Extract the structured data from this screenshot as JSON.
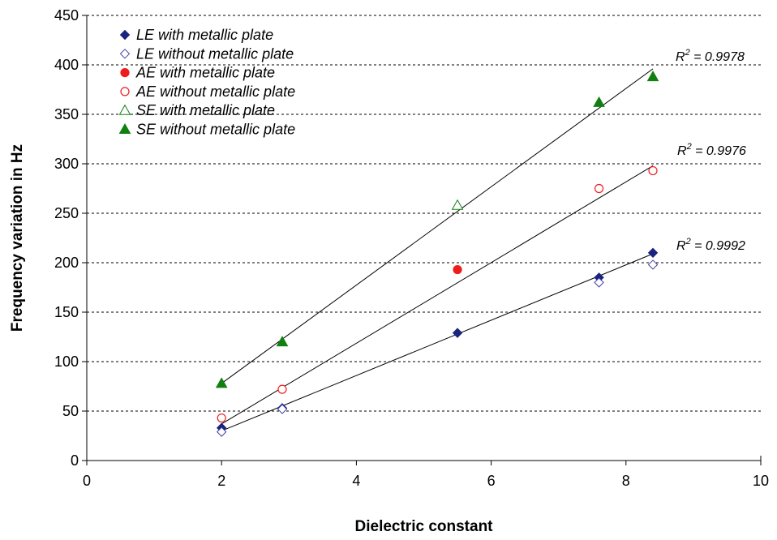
{
  "chart_data": {
    "type": "scatter",
    "title": "",
    "xlabel": "Dielectric constant",
    "ylabel": "Frequency variation in Hz",
    "xlim": [
      0,
      10
    ],
    "ylim": [
      0,
      450
    ],
    "xticks": [
      0,
      2,
      4,
      6,
      8,
      10
    ],
    "yticks": [
      0,
      50,
      100,
      150,
      200,
      250,
      300,
      350,
      400,
      450
    ],
    "grid": "horizontal dashed",
    "legend_position": "top-left",
    "series": [
      {
        "name": "LE with metallic plate",
        "marker": "diamond",
        "filled": true,
        "color": "#1a237e",
        "x": [
          2,
          2.9,
          5.5,
          7.6,
          8.4
        ],
        "y": [
          33,
          53,
          129,
          185,
          210
        ]
      },
      {
        "name": "LE without metallic plate",
        "marker": "diamond",
        "filled": false,
        "color": "#3f3fa5",
        "x": [
          2,
          2.9,
          7.6,
          8.4
        ],
        "y": [
          29,
          52,
          180,
          198
        ]
      },
      {
        "name": "AE with metallic plate",
        "marker": "circle",
        "filled": true,
        "color": "#ee1c1c",
        "x": [
          5.5
        ],
        "y": [
          193
        ]
      },
      {
        "name": "AE without metallic plate",
        "marker": "circle",
        "filled": false,
        "color": "#ee1c1c",
        "x": [
          2,
          2.9,
          7.6,
          8.4
        ],
        "y": [
          43,
          72,
          275,
          293
        ]
      },
      {
        "name": "SE with metallic plate",
        "marker": "triangle",
        "filled": false,
        "color": "#108010",
        "x": [
          5.5
        ],
        "y": [
          258
        ]
      },
      {
        "name": "SE without metallic plate",
        "marker": "triangle",
        "filled": true,
        "color": "#108010",
        "x": [
          2,
          2.9,
          7.6,
          8.4
        ],
        "y": [
          78,
          120,
          362,
          388
        ]
      }
    ],
    "trendlines": [
      {
        "label": "R² = 0.9978",
        "r2_text": "= 0.9978",
        "from": [
          2,
          78
        ],
        "to": [
          8.4,
          396
        ]
      },
      {
        "label": "R² = 0.9976",
        "r2_text": "= 0.9976",
        "from": [
          2,
          37
        ],
        "to": [
          8.4,
          298
        ]
      },
      {
        "label": "R² = 0.9992",
        "r2_text": "= 0.9992",
        "from": [
          2,
          30
        ],
        "to": [
          8.4,
          209
        ]
      }
    ],
    "r2_symbol": "R",
    "r2_exponent": "2"
  }
}
